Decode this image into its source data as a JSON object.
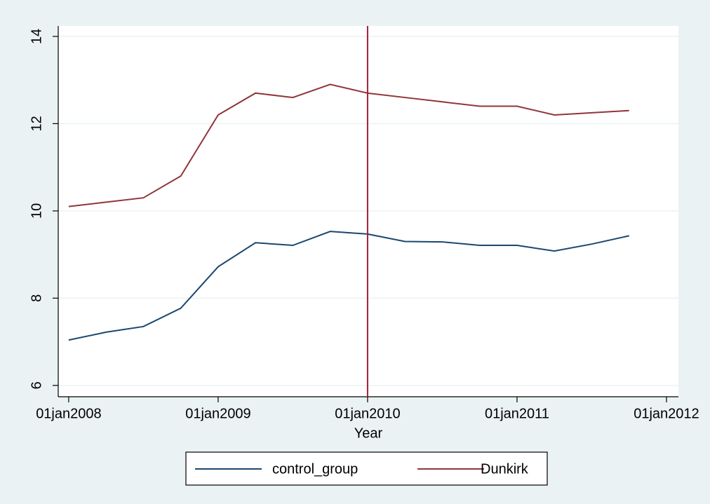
{
  "chart_data": {
    "type": "line",
    "xlabel": "Year",
    "x": [
      2008,
      2008.25,
      2008.5,
      2008.75,
      2009,
      2009.25,
      2009.5,
      2009.75,
      2010,
      2010.25,
      2010.5,
      2010.75,
      2011,
      2011.25,
      2011.5,
      2011.75
    ],
    "series": [
      {
        "name": "control_group",
        "color": "#1a476f",
        "values": [
          7.04,
          7.22,
          7.35,
          7.77,
          8.72,
          9.27,
          9.21,
          9.53,
          9.47,
          9.3,
          9.29,
          9.21,
          9.21,
          9.08,
          9.24,
          9.43
        ]
      },
      {
        "name": "Dunkirk",
        "color": "#90353b",
        "values": [
          10.1,
          10.2,
          10.3,
          10.8,
          12.2,
          12.7,
          12.6,
          12.9,
          12.7,
          12.6,
          12.5,
          12.4,
          12.4,
          12.2,
          12.25,
          12.3
        ]
      }
    ],
    "xlim": [
      2007.93,
      2012.08
    ],
    "xticks": [
      {
        "value": 2008,
        "label": "01jan2008"
      },
      {
        "value": 2009,
        "label": "01jan2009"
      },
      {
        "value": 2010,
        "label": "01jan2010"
      },
      {
        "value": 2011,
        "label": "01jan2011"
      },
      {
        "value": 2012,
        "label": "01jan2012"
      }
    ],
    "ylim": [
      5.74,
      14.24
    ],
    "yticks": [
      6,
      8,
      10,
      12,
      14
    ],
    "grid": true,
    "vline": {
      "x": 2010,
      "color": "#a0203a"
    },
    "legend": "bottom"
  }
}
